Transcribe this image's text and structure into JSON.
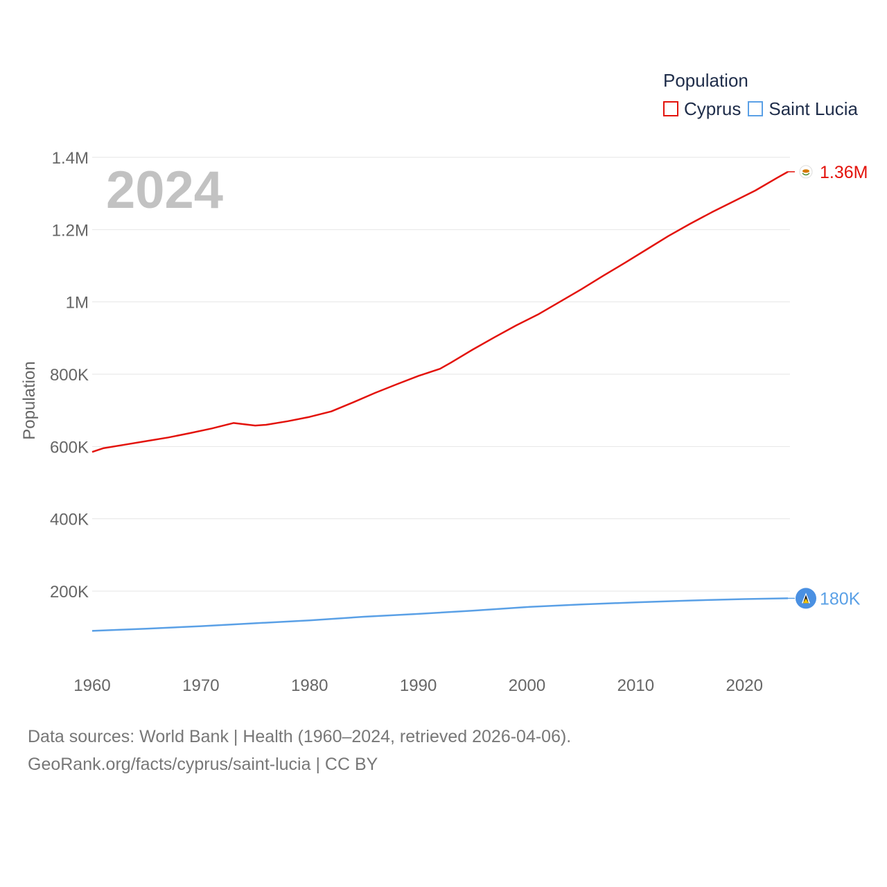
{
  "legend": {
    "title": "Population",
    "items": [
      {
        "label": "Cyprus",
        "color": "#e3120b"
      },
      {
        "label": "Saint Lucia",
        "color": "#5aa0e6"
      }
    ]
  },
  "year_watermark": "2024",
  "caption": {
    "line1": "Data sources: World Bank | Health (1960–2024, retrieved 2026-04-06).",
    "line2": "GeoRank.org/facts/cyprus/saint-lucia | CC BY"
  },
  "chart_data": {
    "type": "line",
    "title": "",
    "xlabel": "",
    "ylabel": "Population",
    "xlim": [
      1960,
      2024
    ],
    "ylim": [
      0,
      1400000
    ],
    "x_ticks": [
      1960,
      1970,
      1980,
      1990,
      2000,
      2010,
      2020
    ],
    "x_tick_labels": [
      "1960",
      "1970",
      "1980",
      "1990",
      "2000",
      "2010",
      "2020"
    ],
    "y_ticks": [
      200000,
      400000,
      600000,
      800000,
      1000000,
      1200000,
      1400000
    ],
    "y_tick_labels": [
      "200K",
      "400K",
      "600K",
      "800K",
      "1M",
      "1.2M",
      "1.4M"
    ],
    "grid": true,
    "series": [
      {
        "name": "Cyprus",
        "color": "#e3120b",
        "end_label": "1.36M",
        "points": [
          [
            1960,
            585000
          ],
          [
            1961,
            595000
          ],
          [
            1963,
            605000
          ],
          [
            1965,
            615000
          ],
          [
            1967,
            625000
          ],
          [
            1969,
            637000
          ],
          [
            1971,
            650000
          ],
          [
            1973,
            665000
          ],
          [
            1975,
            658000
          ],
          [
            1976,
            660000
          ],
          [
            1978,
            670000
          ],
          [
            1980,
            682000
          ],
          [
            1982,
            697000
          ],
          [
            1984,
            722000
          ],
          [
            1986,
            748000
          ],
          [
            1988,
            772000
          ],
          [
            1990,
            795000
          ],
          [
            1992,
            815000
          ],
          [
            1993,
            832000
          ],
          [
            1995,
            868000
          ],
          [
            1997,
            902000
          ],
          [
            1999,
            935000
          ],
          [
            2001,
            965000
          ],
          [
            2003,
            1000000
          ],
          [
            2005,
            1035000
          ],
          [
            2007,
            1072000
          ],
          [
            2009,
            1108000
          ],
          [
            2011,
            1145000
          ],
          [
            2013,
            1182000
          ],
          [
            2015,
            1216000
          ],
          [
            2017,
            1248000
          ],
          [
            2019,
            1278000
          ],
          [
            2021,
            1308000
          ],
          [
            2023,
            1343000
          ],
          [
            2024,
            1360000
          ]
        ]
      },
      {
        "name": "Saint Lucia",
        "color": "#5aa0e6",
        "end_label": "180K",
        "points": [
          [
            1960,
            90000
          ],
          [
            1965,
            96000
          ],
          [
            1970,
            103000
          ],
          [
            1975,
            111000
          ],
          [
            1980,
            119000
          ],
          [
            1985,
            129000
          ],
          [
            1990,
            137000
          ],
          [
            1995,
            146000
          ],
          [
            2000,
            156000
          ],
          [
            2005,
            163000
          ],
          [
            2010,
            169000
          ],
          [
            2015,
            174000
          ],
          [
            2020,
            178000
          ],
          [
            2024,
            180000
          ]
        ]
      }
    ]
  }
}
